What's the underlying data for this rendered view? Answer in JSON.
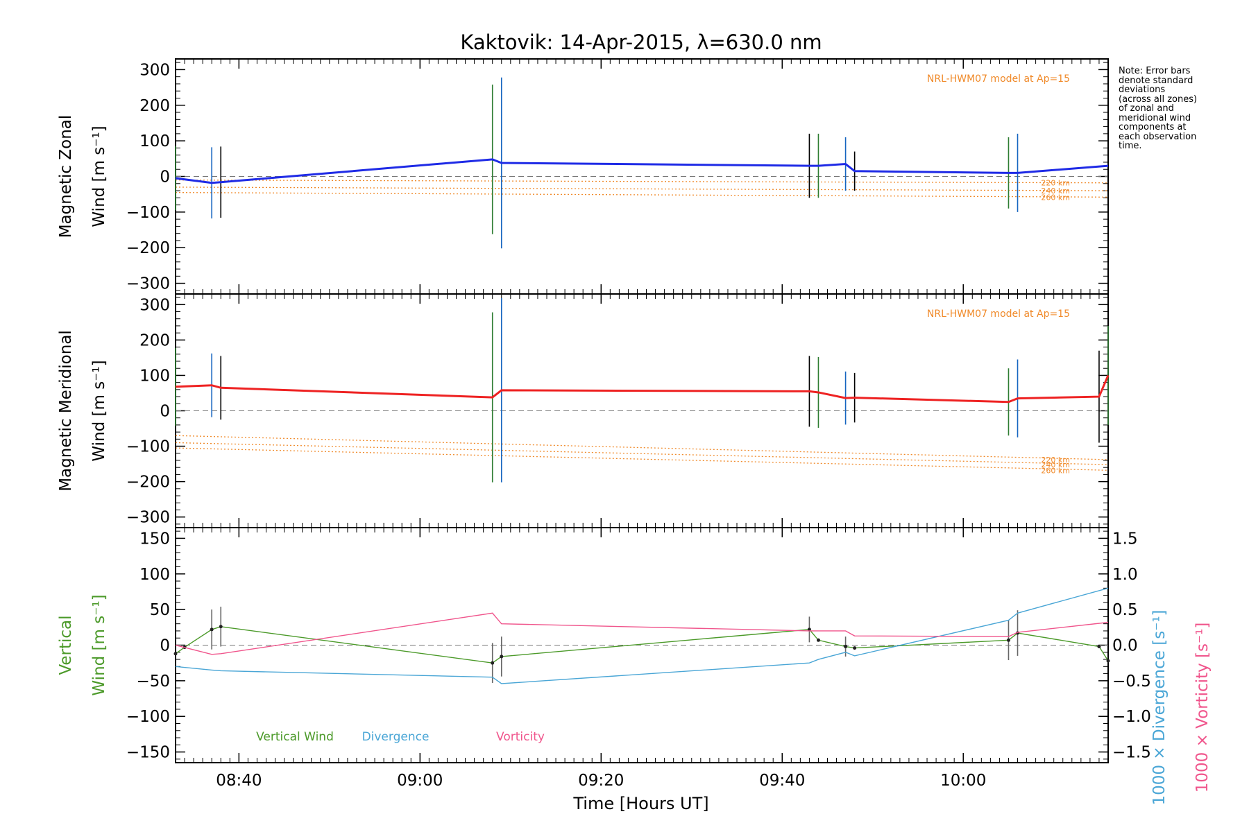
{
  "chart_data": {
    "type": "line",
    "title": "Kaktovik: 14-Apr-2015, λ=630.0 nm",
    "xlabel": "Time [Hours UT]",
    "x_range": [
      "08:33",
      "10:16"
    ],
    "x_ticks": [
      "08:40",
      "09:00",
      "09:20",
      "09:40",
      "10:00"
    ],
    "note_lines": [
      "Note: Error bars",
      "denote standard",
      "deviations",
      "(across all zones)",
      "of zonal and",
      "meridional wind",
      "components at",
      "each observation",
      "time."
    ],
    "grid": false,
    "panels": [
      {
        "id": "zonal",
        "ylabel": [
          "Magnetic Zonal",
          "Wind [m s⁻¹]"
        ],
        "ylim": [
          -330,
          330
        ],
        "yticks": [
          "300",
          "200",
          "100",
          "0",
          "−100",
          "−200",
          "−300"
        ],
        "model_label": "NRL-HWM07 model at Ap=15",
        "series": [
          {
            "color": "#1f2be6",
            "x": [
              "08:33",
              "08:37",
              "08:38",
              "09:08",
              "09:09",
              "09:43",
              "09:44",
              "09:47",
              "09:48",
              "10:05",
              "10:06",
              "10:16"
            ],
            "values": [
              -5,
              -18,
              -16,
              48,
              38,
              30,
              30,
              35,
              15,
              10,
              10,
              30
            ],
            "error": [
              90,
              100,
              100,
              210,
              240,
              90,
              90,
              75,
              55,
              100,
              110,
              140
            ]
          }
        ],
        "model_lines": [
          {
            "label": "220 km",
            "start": -10,
            "end": -18
          },
          {
            "label": "240 km",
            "start": -30,
            "end": -40
          },
          {
            "label": "260 km",
            "start": -45,
            "end": -58
          }
        ]
      },
      {
        "id": "meridional",
        "ylabel": [
          "Magnetic Meridional",
          "Wind [m s⁻¹]"
        ],
        "ylim": [
          -330,
          330
        ],
        "yticks": [
          "300",
          "200",
          "100",
          "0",
          "−100",
          "−200",
          "−300"
        ],
        "model_label": "NRL-HWM07 model at Ap=15",
        "series": [
          {
            "color": "#ee2222",
            "x": [
              "08:33",
              "08:37",
              "08:38",
              "09:08",
              "09:09",
              "09:43",
              "09:44",
              "09:47",
              "09:48",
              "10:05",
              "10:06",
              "10:15",
              "10:16"
            ],
            "values": [
              68,
              72,
              65,
              38,
              58,
              55,
              52,
              36,
              37,
              25,
              35,
              40,
              100
            ],
            "error": [
              110,
              90,
              90,
              240,
              260,
              100,
              100,
              75,
              70,
              95,
              110,
              130,
              140
            ]
          }
        ],
        "model_lines": [
          {
            "label": "220 km",
            "start": -70,
            "end": -138
          },
          {
            "label": "240 km",
            "start": -90,
            "end": -152
          },
          {
            "label": "260 km",
            "start": -105,
            "end": -168
          }
        ]
      },
      {
        "id": "vertical",
        "ylabel_left": [
          "Vertical",
          "Wind [m s⁻¹]"
        ],
        "ylim": [
          -165,
          165
        ],
        "yticks": [
          "150",
          "100",
          "50",
          "0",
          "−50",
          "−100",
          "−150"
        ],
        "right_axis": {
          "ylim": [
            -1.65,
            1.65
          ],
          "yticks": [
            "1.5",
            "1.0",
            "0.5",
            "0.0",
            "−0.5",
            "−1.0",
            "−1.5"
          ],
          "label_divergence": "1000 × Divergence [s⁻¹]",
          "label_vorticity": "1000 × Vorticity [s⁻¹]"
        },
        "legend": [
          "Vertical Wind",
          "Divergence",
          "Vorticity"
        ],
        "series": [
          {
            "name": "Vertical Wind",
            "color": "#4c9a2a",
            "x": [
              "08:33",
              "08:34",
              "08:37",
              "08:38",
              "09:08",
              "09:09",
              "09:43",
              "09:44",
              "09:47",
              "09:48",
              "10:05",
              "10:06",
              "10:15",
              "10:16"
            ],
            "values": [
              -12,
              -3,
              22,
              26,
              -25,
              -16,
              22,
              7,
              -2,
              -4,
              7,
              17,
              -2,
              -22
            ],
            "error": [
              0,
              0,
              28,
              28,
              28,
              28,
              18,
              0,
              14,
              0,
              28,
              32,
              0,
              0
            ]
          },
          {
            "name": "Divergence",
            "color": "#4aa6d6",
            "axis": "right",
            "x": [
              "08:33",
              "08:37",
              "08:38",
              "09:08",
              "09:09",
              "09:43",
              "09:44",
              "09:47",
              "09:48",
              "10:05",
              "10:06",
              "10:16"
            ],
            "values": [
              -0.3,
              -0.35,
              -0.36,
              -0.45,
              -0.54,
              -0.25,
              -0.2,
              -0.1,
              -0.15,
              0.35,
              0.45,
              0.8
            ]
          },
          {
            "name": "Vorticity",
            "color": "#f0558c",
            "axis": "right",
            "x": [
              "08:33",
              "08:37",
              "08:38",
              "09:08",
              "09:09",
              "09:43",
              "09:44",
              "09:47",
              "09:48",
              "10:05",
              "10:06",
              "10:16"
            ],
            "values": [
              0.0,
              -0.13,
              -0.12,
              0.45,
              0.3,
              0.2,
              0.2,
              0.2,
              0.13,
              0.12,
              0.18,
              0.32
            ]
          }
        ]
      }
    ]
  }
}
